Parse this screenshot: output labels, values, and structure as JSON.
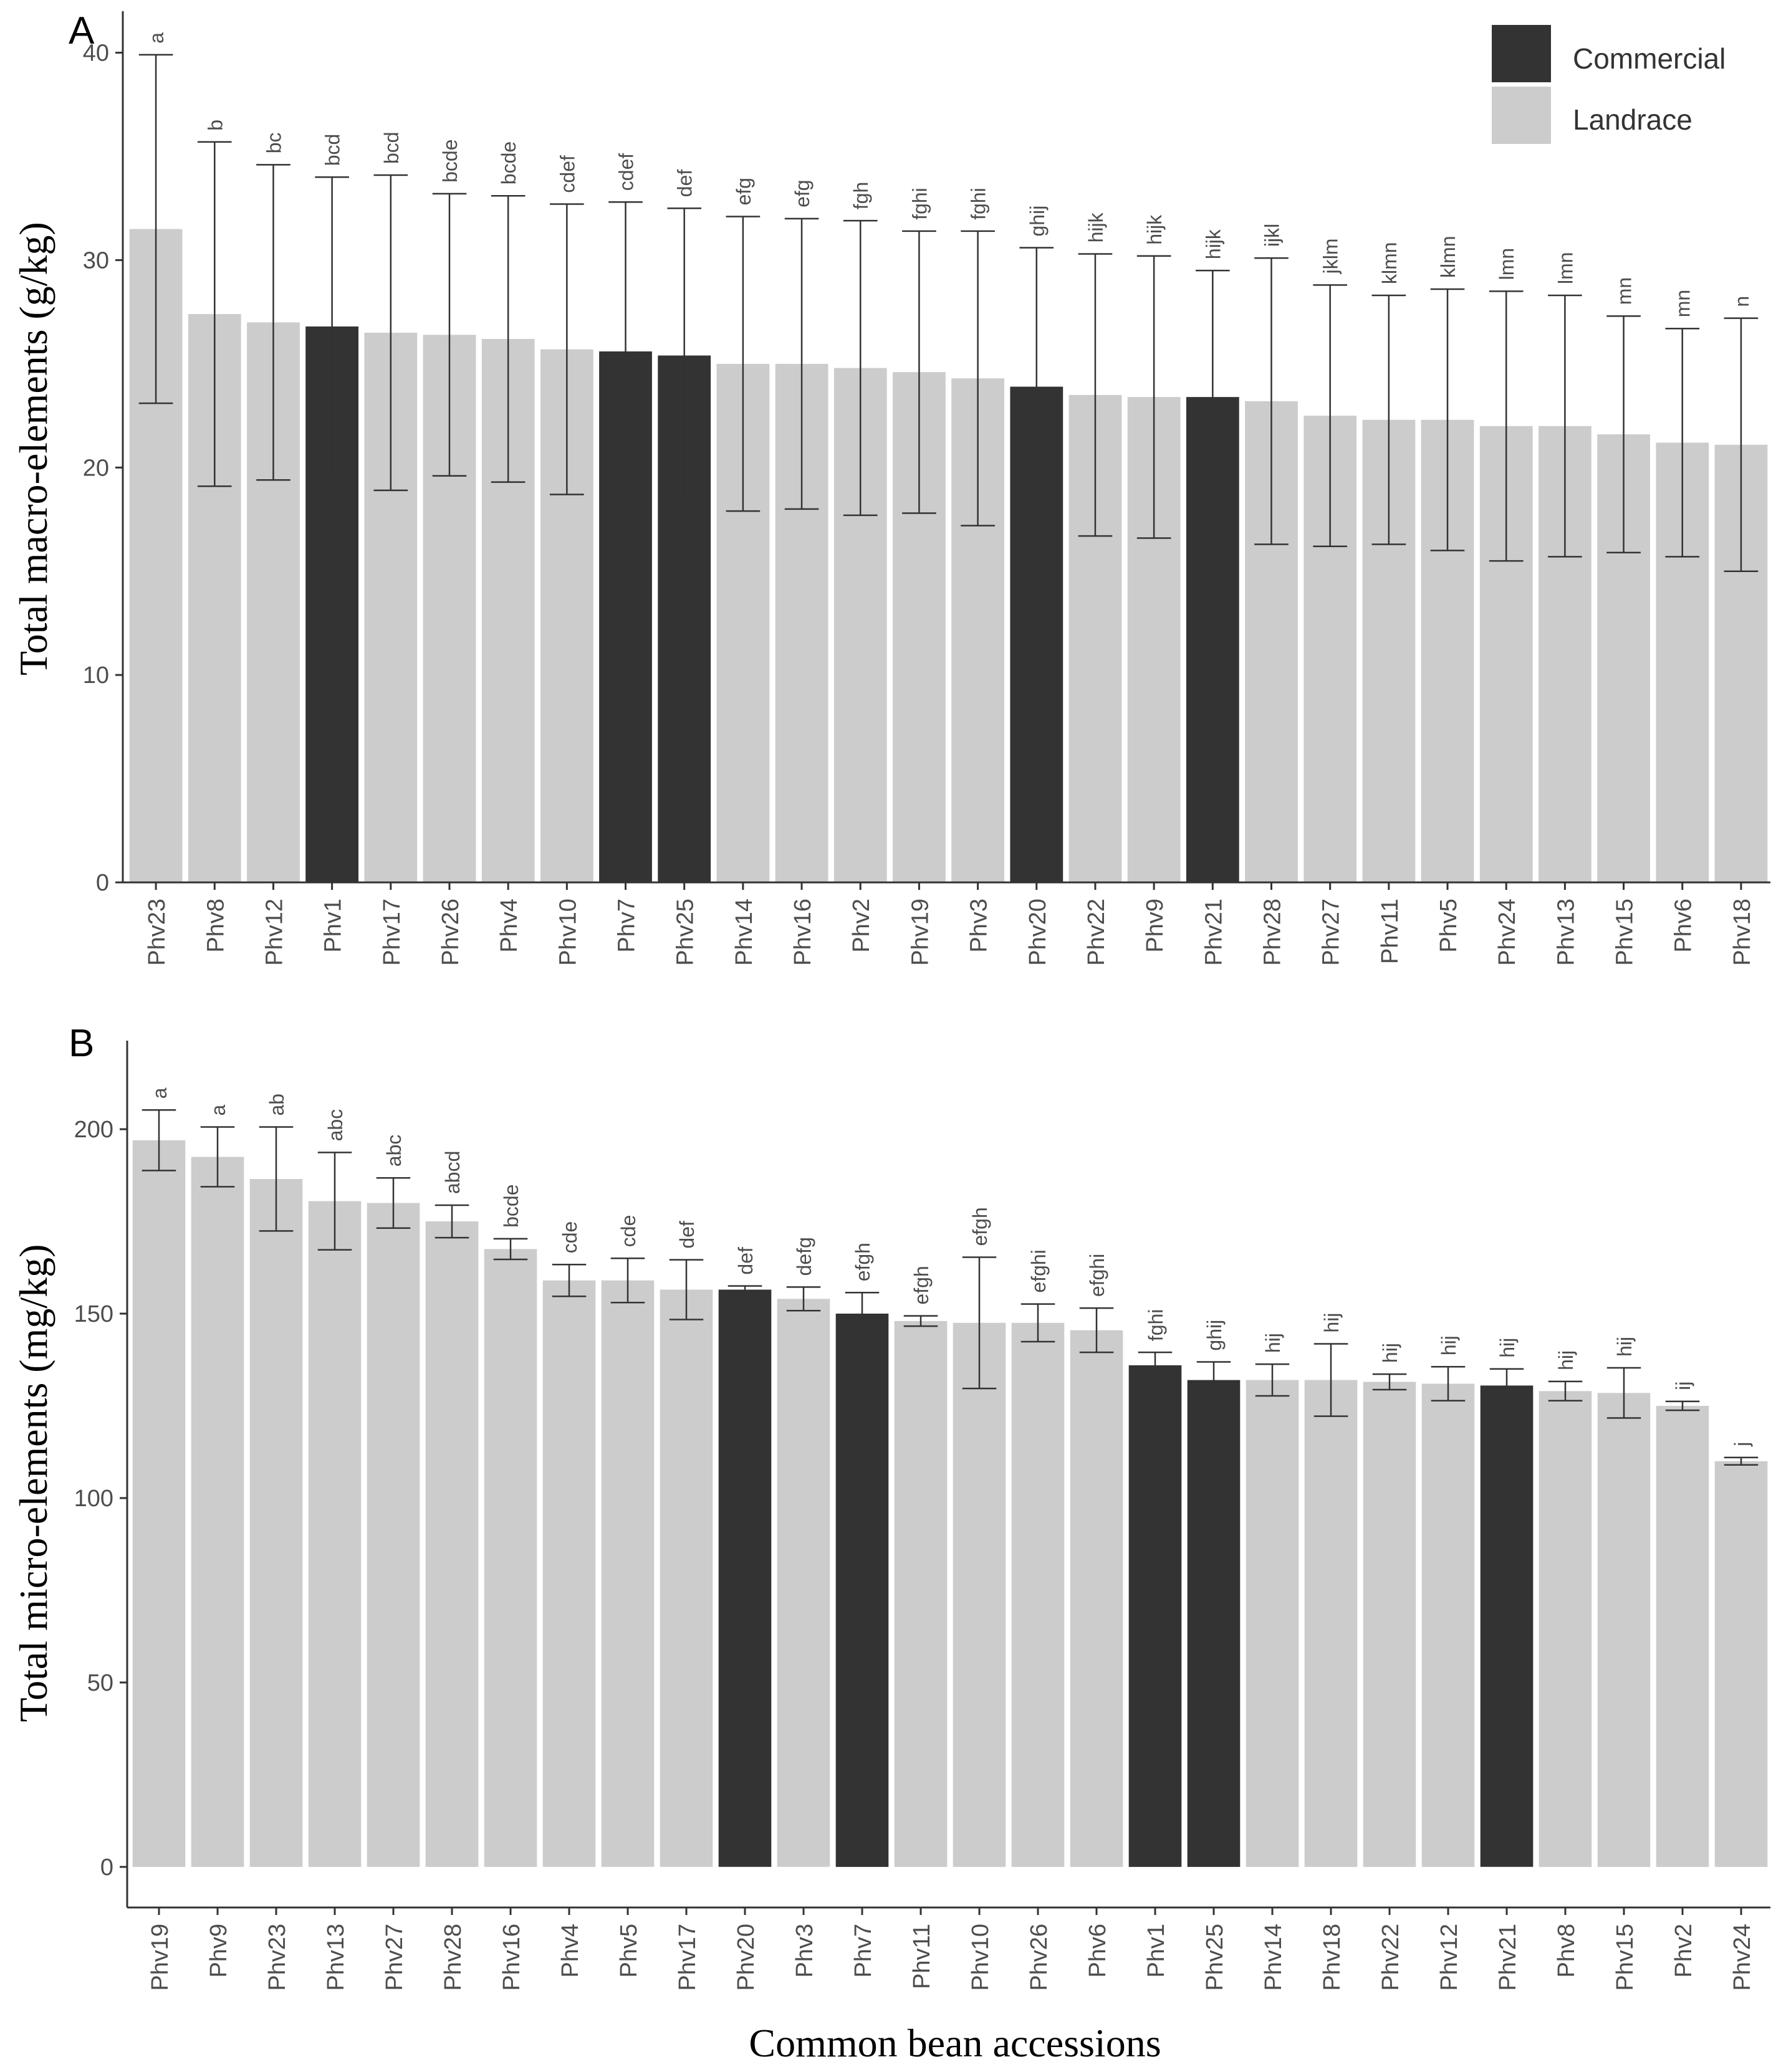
{
  "colors": {
    "commercial": "#333333",
    "landrace": "#cccccc",
    "axis": "#333333",
    "tick_label": "#4d4d4d",
    "error_bar": "#333333"
  },
  "legend": {
    "items": [
      {
        "key": "commercial",
        "label": "Commercial"
      },
      {
        "key": "landrace",
        "label": "Landrace"
      }
    ]
  },
  "shared_xlabel": "Common bean accessions",
  "chart_data": [
    {
      "type": "bar",
      "panel": "A",
      "title": "",
      "xlabel": "Common bean accessions",
      "ylabel": "Total macro-elements (g/kg)",
      "ylim": [
        0,
        42
      ],
      "yticks": [
        0,
        10,
        20,
        30,
        40
      ],
      "grid": false,
      "legend_position": "top-right",
      "categories": [
        "Phv23",
        "Phv8",
        "Phv12",
        "Phv1",
        "Phv17",
        "Phv26",
        "Phv4",
        "Phv10",
        "Phv7",
        "Phv25",
        "Phv14",
        "Phv16",
        "Phv2",
        "Phv19",
        "Phv3",
        "Phv20",
        "Phv22",
        "Phv9",
        "Phv21",
        "Phv28",
        "Phv27",
        "Phv11",
        "Phv5",
        "Phv24",
        "Phv13",
        "Phv15",
        "Phv6",
        "Phv18"
      ],
      "values": [
        31.5,
        27.4,
        27.0,
        26.8,
        26.5,
        26.4,
        26.2,
        25.7,
        25.6,
        25.4,
        25.0,
        25.0,
        24.8,
        24.6,
        24.3,
        23.9,
        23.5,
        23.4,
        23.4,
        23.2,
        22.5,
        22.3,
        22.3,
        22.0,
        22.0,
        21.6,
        21.2,
        21.1
      ],
      "errors": [
        8.4,
        8.3,
        7.6,
        7.2,
        7.6,
        6.8,
        6.9,
        7.0,
        7.2,
        7.1,
        7.1,
        7.0,
        7.1,
        6.8,
        7.1,
        6.7,
        6.8,
        6.8,
        6.1,
        6.9,
        6.3,
        6.0,
        6.3,
        6.5,
        6.3,
        5.7,
        5.5,
        6.1
      ],
      "groups": [
        "landrace",
        "landrace",
        "landrace",
        "commercial",
        "landrace",
        "landrace",
        "landrace",
        "landrace",
        "commercial",
        "commercial",
        "landrace",
        "landrace",
        "landrace",
        "landrace",
        "landrace",
        "commercial",
        "landrace",
        "landrace",
        "commercial",
        "landrace",
        "landrace",
        "landrace",
        "landrace",
        "landrace",
        "landrace",
        "landrace",
        "landrace",
        "landrace"
      ],
      "letters": [
        "a",
        "b",
        "bc",
        "bcd",
        "bcd",
        "bcde",
        "bcde",
        "cdef",
        "cdef",
        "def",
        "efg",
        "efg",
        "fgh",
        "fghi",
        "fghi",
        "ghij",
        "hijk",
        "hijk",
        "hijk",
        "ijkl",
        "jklm",
        "klmn",
        "klmn",
        "lmn",
        "lmn",
        "mn",
        "mn",
        "n"
      ]
    },
    {
      "type": "bar",
      "panel": "B",
      "title": "",
      "xlabel": "Common bean accessions",
      "ylabel": "Total micro-elements (mg/kg)",
      "ylim": [
        -11,
        224
      ],
      "yticks": [
        0,
        50,
        100,
        150,
        200
      ],
      "grid": false,
      "legend_position": "none",
      "categories": [
        "Phv19",
        "Phv9",
        "Phv23",
        "Phv13",
        "Phv27",
        "Phv28",
        "Phv16",
        "Phv4",
        "Phv5",
        "Phv17",
        "Phv20",
        "Phv3",
        "Phv7",
        "Phv11",
        "Phv10",
        "Phv26",
        "Phv6",
        "Phv1",
        "Phv25",
        "Phv14",
        "Phv18",
        "Phv22",
        "Phv12",
        "Phv21",
        "Phv8",
        "Phv15",
        "Phv2",
        "Phv24"
      ],
      "values": [
        197,
        192.5,
        186.5,
        180.5,
        180,
        175,
        167.5,
        159,
        159,
        156.5,
        156.5,
        154,
        150,
        148,
        147.5,
        147.5,
        145.5,
        136,
        132,
        132,
        132,
        131.5,
        131,
        130.5,
        129,
        128.5,
        125,
        110
      ],
      "errors": [
        8.2,
        8.1,
        14.1,
        13.2,
        6.8,
        4.4,
        2.8,
        4.3,
        6.0,
        8.1,
        1.0,
        3.2,
        5.7,
        1.4,
        17.8,
        5.1,
        6.0,
        3.5,
        4.9,
        4.3,
        9.8,
        2.1,
        4.6,
        4.5,
        2.6,
        6.8,
        1.2,
        1.0
      ],
      "groups": [
        "landrace",
        "landrace",
        "landrace",
        "landrace",
        "landrace",
        "landrace",
        "landrace",
        "landrace",
        "landrace",
        "landrace",
        "commercial",
        "landrace",
        "commercial",
        "landrace",
        "landrace",
        "landrace",
        "landrace",
        "commercial",
        "commercial",
        "landrace",
        "landrace",
        "landrace",
        "landrace",
        "commercial",
        "landrace",
        "landrace",
        "landrace",
        "landrace"
      ],
      "letters": [
        "a",
        "a",
        "ab",
        "abc",
        "abc",
        "abcd",
        "bcde",
        "cde",
        "cde",
        "def",
        "def",
        "defg",
        "efgh",
        "efgh",
        "efgh",
        "efghi",
        "efghi",
        "fghi",
        "ghij",
        "hij",
        "hij",
        "hij",
        "hij",
        "hij",
        "hij",
        "hij",
        "ij",
        "j"
      ]
    }
  ]
}
